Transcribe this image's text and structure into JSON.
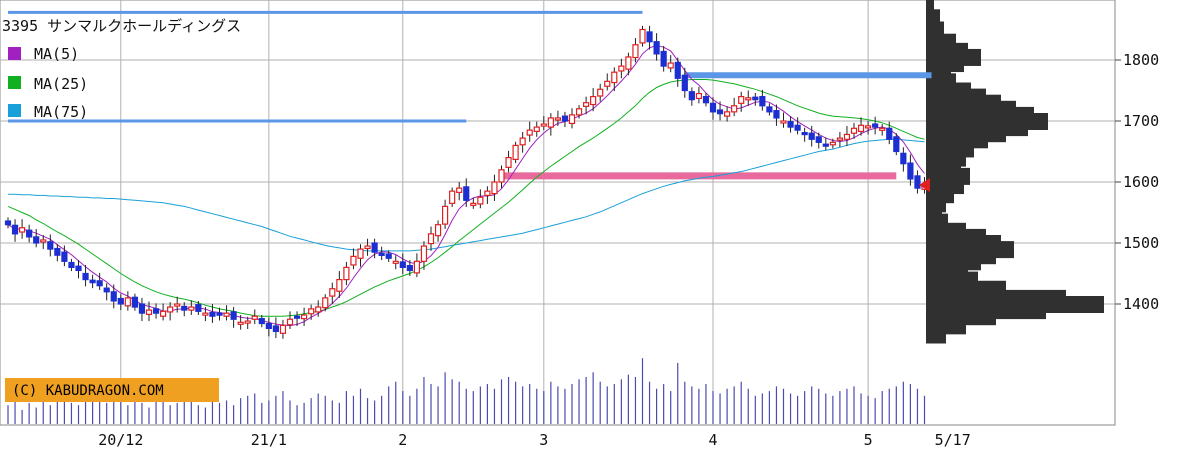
{
  "chart_data": {
    "type": "candlestick",
    "title": "3395 サンマルクホールディングス",
    "credit": "(C) KABUDRAGON.COM",
    "legend": [
      {
        "label": "MA(5)",
        "color": "#a020c0"
      },
      {
        "label": "MA(25)",
        "color": "#10b020"
      },
      {
        "label": "MA(75)",
        "color": "#1aa0d8"
      }
    ],
    "ylim": [
      1300,
      1900
    ],
    "y_ticks": [
      {
        "value": 1800,
        "label": "1800"
      },
      {
        "value": 1700,
        "label": "1700"
      },
      {
        "value": 1600,
        "label": "1600"
      },
      {
        "value": 1500,
        "label": "1500"
      },
      {
        "value": 1400,
        "label": "1400"
      }
    ],
    "x_labels": [
      {
        "label": "20/12",
        "x_index": 16
      },
      {
        "label": "21/1",
        "x_index": 37
      },
      {
        "label": "2",
        "x_index": 56
      },
      {
        "label": "3",
        "x_index": 76
      },
      {
        "label": "4",
        "x_index": 100
      },
      {
        "label": "5",
        "x_index": 122
      },
      {
        "label": "5/17",
        "x_index": 134
      }
    ],
    "closes": [
      1530,
      1515,
      1525,
      1510,
      1500,
      1505,
      1490,
      1480,
      1470,
      1460,
      1455,
      1440,
      1435,
      1430,
      1420,
      1405,
      1400,
      1410,
      1395,
      1385,
      1390,
      1385,
      1388,
      1395,
      1400,
      1390,
      1395,
      1388,
      1385,
      1380,
      1382,
      1385,
      1375,
      1370,
      1372,
      1380,
      1368,
      1360,
      1355,
      1365,
      1375,
      1378,
      1382,
      1392,
      1395,
      1410,
      1425,
      1440,
      1460,
      1478,
      1490,
      1495,
      1485,
      1480,
      1475,
      1470,
      1460,
      1455,
      1470,
      1495,
      1515,
      1530,
      1560,
      1585,
      1590,
      1570,
      1565,
      1575,
      1585,
      1600,
      1620,
      1640,
      1660,
      1672,
      1685,
      1690,
      1695,
      1705,
      1705,
      1700,
      1710,
      1720,
      1730,
      1740,
      1752,
      1765,
      1780,
      1790,
      1805,
      1825,
      1850,
      1830,
      1810,
      1790,
      1795,
      1770,
      1750,
      1735,
      1745,
      1730,
      1715,
      1712,
      1715,
      1725,
      1740,
      1738,
      1735,
      1725,
      1715,
      1705,
      1700,
      1690,
      1685,
      1680,
      1670,
      1665,
      1660,
      1665,
      1672,
      1678,
      1688,
      1693,
      1692,
      1690,
      1688,
      1670,
      1650,
      1630,
      1605,
      1590,
      1595
    ],
    "ma25": [
      1560,
      1555,
      1550,
      1545,
      1538,
      1532,
      1525,
      1518,
      1512,
      1505,
      1498,
      1490,
      1482,
      1474,
      1466,
      1458,
      1450,
      1443,
      1436,
      1430,
      1425,
      1420,
      1416,
      1413,
      1410,
      1408,
      1405,
      1402,
      1398,
      1395,
      1392,
      1390,
      1388,
      1385,
      1383,
      1381,
      1380,
      1380,
      1380,
      1380,
      1381,
      1382,
      1384,
      1386,
      1388,
      1391,
      1395,
      1399,
      1404,
      1410,
      1416,
      1422,
      1428,
      1433,
      1438,
      1442,
      1446,
      1450,
      1455,
      1461,
      1468,
      1476,
      1485,
      1494,
      1504,
      1513,
      1522,
      1531,
      1540,
      1549,
      1558,
      1567,
      1577,
      1587,
      1598,
      1608,
      1617,
      1626,
      1634,
      1642,
      1650,
      1658,
      1665,
      1672,
      1680,
      1688,
      1696,
      1705,
      1715,
      1725,
      1737,
      1747,
      1755,
      1760,
      1764,
      1766,
      1767,
      1768,
      1768,
      1768,
      1767,
      1765,
      1763,
      1761,
      1758,
      1755,
      1752,
      1748,
      1744,
      1740,
      1735,
      1730,
      1725,
      1721,
      1717,
      1713,
      1710,
      1708,
      1707,
      1706,
      1705,
      1704,
      1702,
      1700,
      1697,
      1693,
      1688,
      1683,
      1678,
      1673,
      1670
    ],
    "ma75": [
      1580,
      1580,
      1579,
      1579,
      1578,
      1578,
      1577,
      1577,
      1576,
      1576,
      1575,
      1575,
      1574,
      1574,
      1573,
      1573,
      1572,
      1571,
      1570,
      1569,
      1568,
      1567,
      1566,
      1564,
      1562,
      1560,
      1557,
      1554,
      1551,
      1548,
      1545,
      1542,
      1539,
      1536,
      1533,
      1530,
      1527,
      1523,
      1519,
      1515,
      1511,
      1508,
      1505,
      1502,
      1499,
      1496,
      1494,
      1492,
      1490,
      1489,
      1488,
      1487,
      1487,
      1487,
      1487,
      1487,
      1487,
      1487,
      1488,
      1489,
      1490,
      1492,
      1494,
      1496,
      1498,
      1500,
      1502,
      1504,
      1506,
      1508,
      1510,
      1512,
      1514,
      1516,
      1519,
      1522,
      1525,
      1528,
      1531,
      1534,
      1537,
      1540,
      1543,
      1547,
      1551,
      1556,
      1561,
      1566,
      1571,
      1576,
      1581,
      1585,
      1589,
      1593,
      1596,
      1599,
      1602,
      1604,
      1606,
      1608,
      1609,
      1611,
      1613,
      1615,
      1617,
      1620,
      1623,
      1626,
      1629,
      1632,
      1635,
      1638,
      1641,
      1644,
      1647,
      1650,
      1652,
      1654,
      1657,
      1660,
      1663,
      1665,
      1667,
      1668,
      1669,
      1670,
      1670,
      1669,
      1668,
      1667,
      1666
    ],
    "volume": [
      8,
      10,
      6,
      9,
      7,
      12,
      8,
      10,
      14,
      9,
      8,
      11,
      10,
      12,
      9,
      16,
      10,
      8,
      11,
      9,
      7,
      10,
      12,
      8,
      9,
      11,
      10,
      8,
      7,
      12,
      9,
      10,
      8,
      11,
      12,
      13,
      9,
      10,
      12,
      14,
      10,
      8,
      9,
      11,
      13,
      12,
      10,
      9,
      14,
      12,
      15,
      11,
      10,
      12,
      16,
      18,
      14,
      12,
      15,
      20,
      17,
      16,
      22,
      19,
      18,
      15,
      14,
      16,
      17,
      15,
      19,
      20,
      18,
      16,
      17,
      15,
      14,
      18,
      16,
      15,
      17,
      19,
      20,
      22,
      18,
      16,
      17,
      19,
      21,
      20,
      28,
      18,
      15,
      17,
      14,
      26,
      18,
      16,
      15,
      17,
      14,
      13,
      15,
      16,
      18,
      15,
      12,
      13,
      14,
      16,
      15,
      13,
      12,
      14,
      16,
      15,
      13,
      12,
      14,
      15,
      16,
      13,
      12,
      11,
      14,
      15,
      16,
      18,
      17,
      15,
      12
    ],
    "volume_profile": [
      {
        "price": 1890,
        "size": 8
      },
      {
        "price": 1870,
        "size": 14
      },
      {
        "price": 1850,
        "size": 18
      },
      {
        "price": 1830,
        "size": 30
      },
      {
        "price": 1815,
        "size": 42
      },
      {
        "price": 1805,
        "size": 55
      },
      {
        "price": 1795,
        "size": 38
      },
      {
        "price": 1780,
        "size": 25
      },
      {
        "price": 1765,
        "size": 30
      },
      {
        "price": 1750,
        "size": 45
      },
      {
        "price": 1740,
        "size": 60
      },
      {
        "price": 1730,
        "size": 75
      },
      {
        "price": 1720,
        "size": 90
      },
      {
        "price": 1710,
        "size": 108
      },
      {
        "price": 1700,
        "size": 122
      },
      {
        "price": 1690,
        "size": 102
      },
      {
        "price": 1680,
        "size": 80
      },
      {
        "price": 1670,
        "size": 62
      },
      {
        "price": 1655,
        "size": 48
      },
      {
        "price": 1640,
        "size": 40
      },
      {
        "price": 1625,
        "size": 35
      },
      {
        "price": 1610,
        "size": 44
      },
      {
        "price": 1595,
        "size": 38
      },
      {
        "price": 1580,
        "size": 28
      },
      {
        "price": 1565,
        "size": 20
      },
      {
        "price": 1550,
        "size": 16
      },
      {
        "price": 1535,
        "size": 22
      },
      {
        "price": 1520,
        "size": 40
      },
      {
        "price": 1510,
        "size": 60
      },
      {
        "price": 1500,
        "size": 75
      },
      {
        "price": 1490,
        "size": 88
      },
      {
        "price": 1480,
        "size": 70
      },
      {
        "price": 1470,
        "size": 55
      },
      {
        "price": 1455,
        "size": 42
      },
      {
        "price": 1440,
        "size": 52
      },
      {
        "price": 1425,
        "size": 80
      },
      {
        "price": 1410,
        "size": 140
      },
      {
        "price": 1400,
        "size": 178
      },
      {
        "price": 1390,
        "size": 120
      },
      {
        "price": 1380,
        "size": 70
      },
      {
        "price": 1365,
        "size": 40
      },
      {
        "price": 1350,
        "size": 20
      }
    ],
    "levels": [
      {
        "price": 1610,
        "start_index": 70,
        "end_index": 126,
        "color": "#e86a9c"
      },
      {
        "price": 1700,
        "start_index": 0,
        "end_index": 65,
        "color": "#5c96e6"
      },
      {
        "price": 1775,
        "start_index": 96,
        "end_index": 131,
        "color": "#5c96e6"
      },
      {
        "price": 1878,
        "start_index": 0,
        "end_index": 90,
        "color": "#5c96e6"
      }
    ],
    "current_price": 1595
  }
}
